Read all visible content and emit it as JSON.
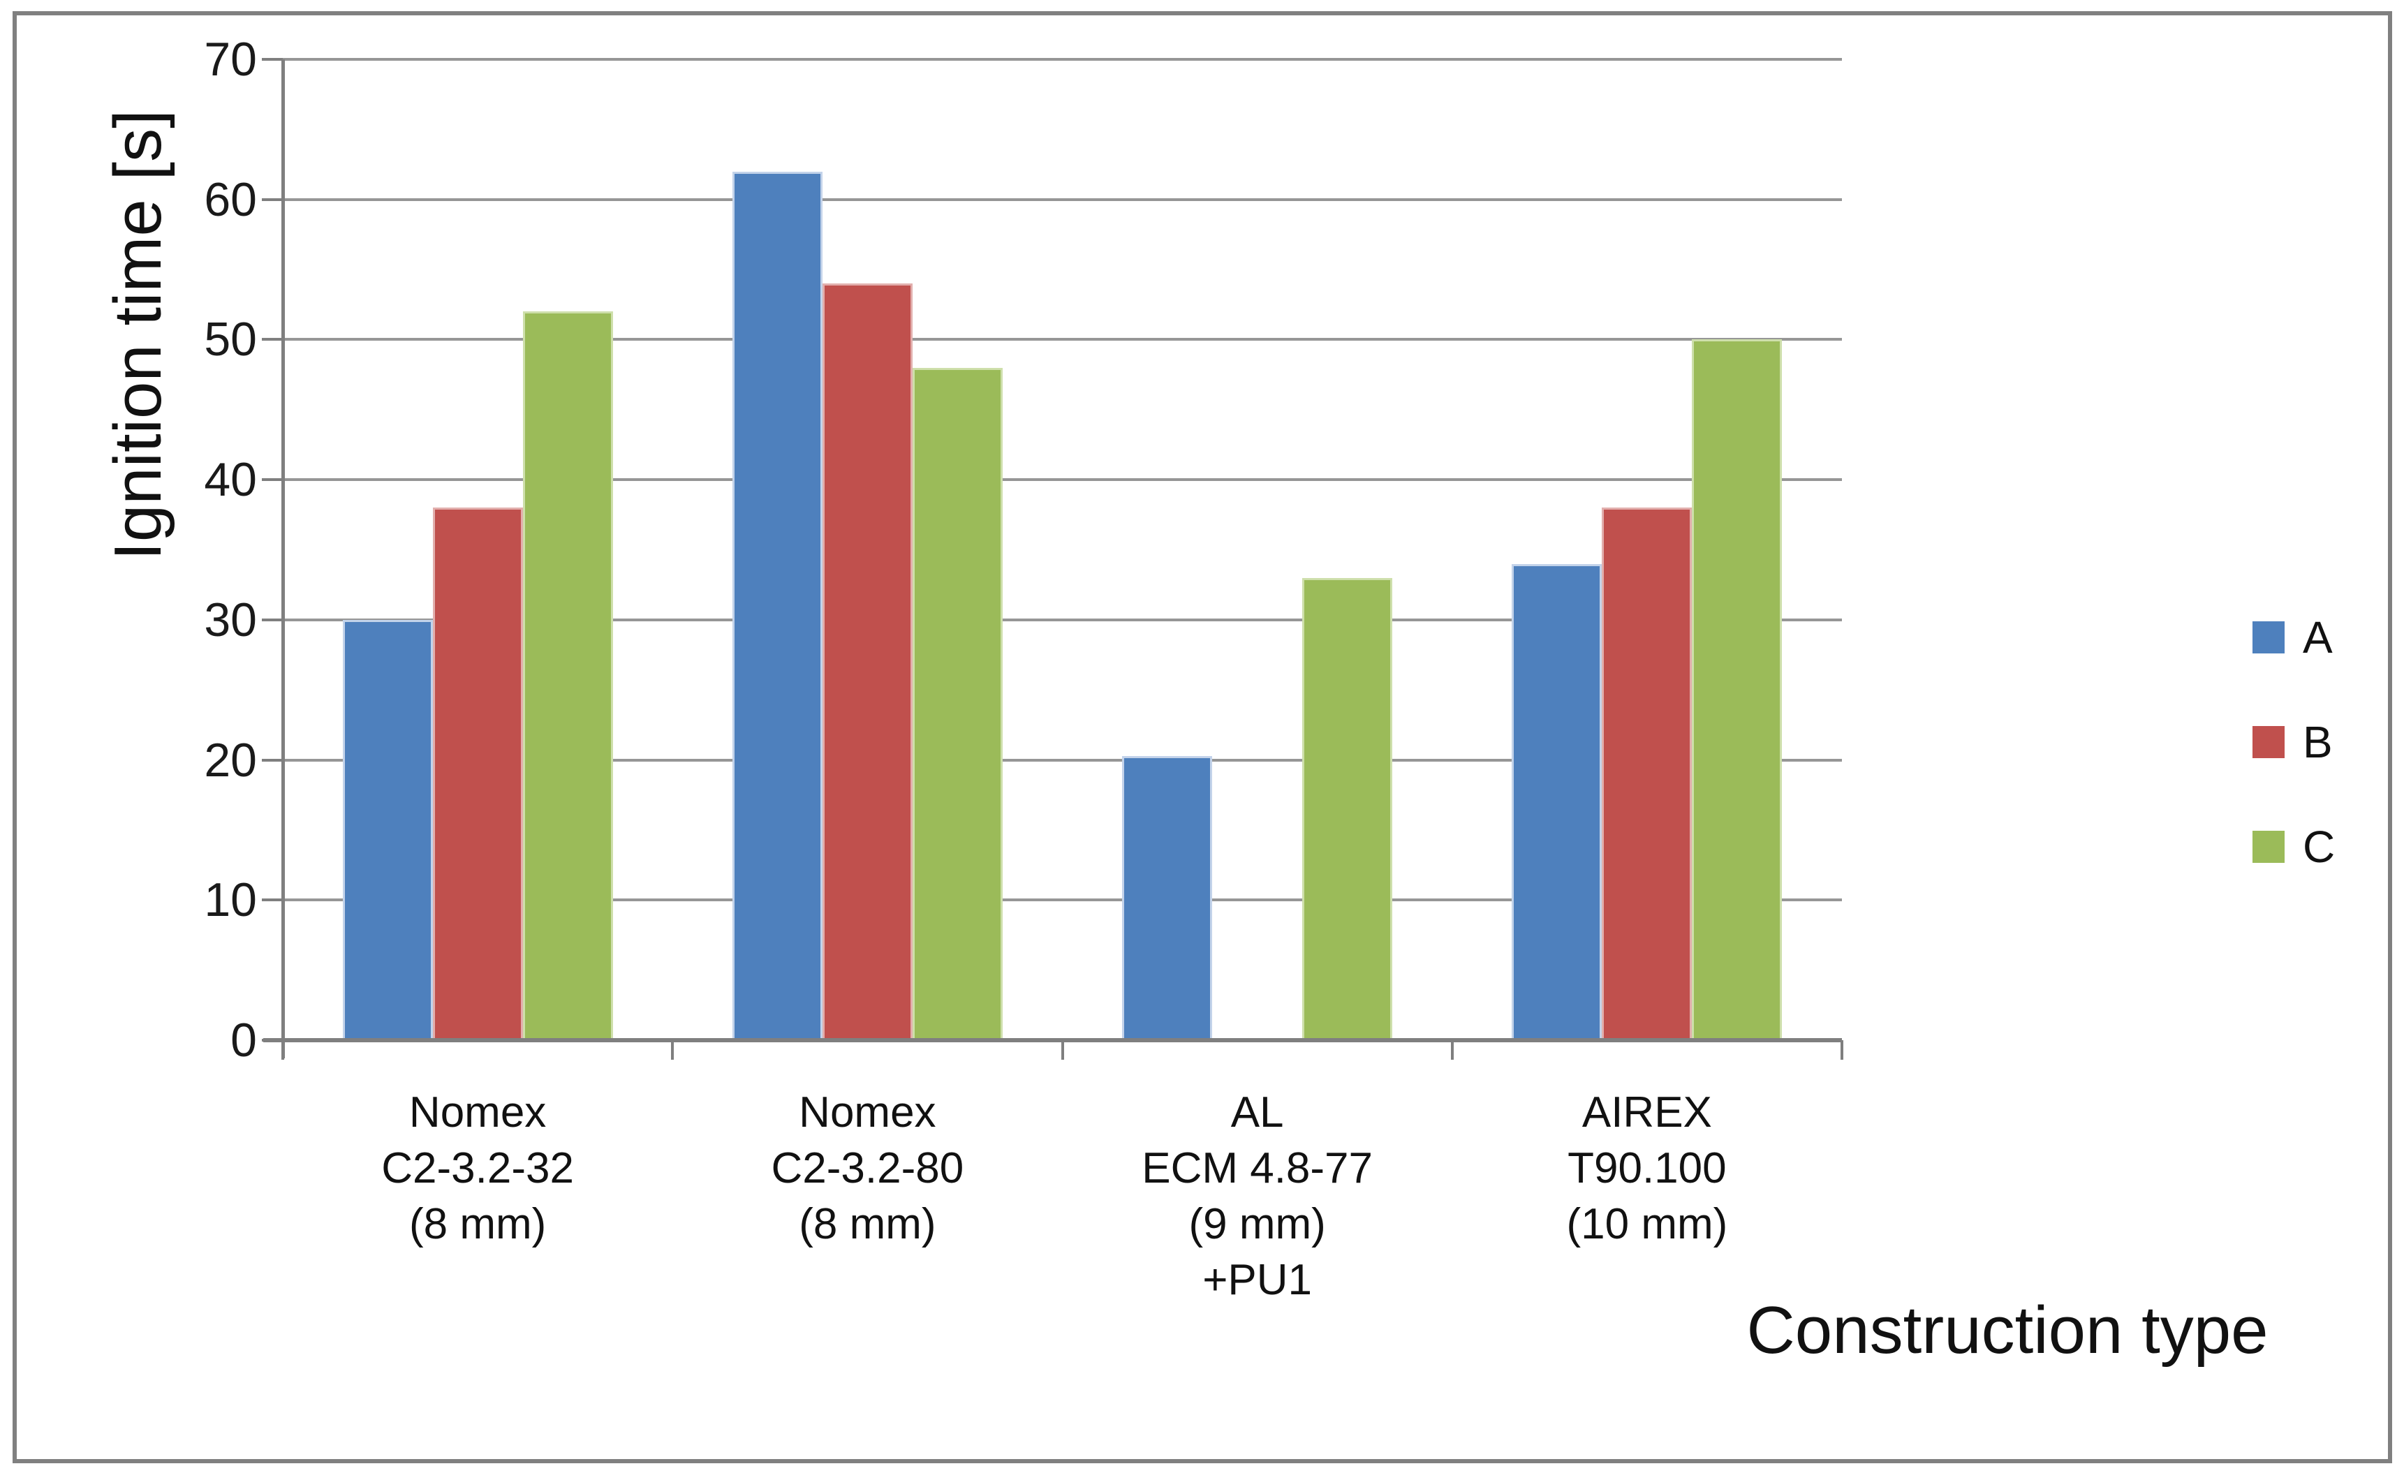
{
  "chart_data": {
    "type": "bar",
    "title": "",
    "ylabel": "Ignition time [s]",
    "xlabel": "Construction type",
    "ylim": [
      0,
      70
    ],
    "ytick_interval": 10,
    "yticks": [
      0,
      10,
      20,
      30,
      40,
      50,
      60,
      70
    ],
    "grid": true,
    "legend_position": "right-middle",
    "categories": [
      {
        "lines": [
          "Nomex",
          "C2-3.2-32",
          "(8 mm)"
        ]
      },
      {
        "lines": [
          "Nomex",
          "C2-3.2-80",
          "(8 mm)"
        ]
      },
      {
        "lines": [
          "AL",
          "ECM 4.8-77",
          "(9 mm)",
          "+PU1"
        ]
      },
      {
        "lines": [
          "AIREX",
          "T90.100",
          "(10 mm)"
        ]
      }
    ],
    "series": [
      {
        "name": "A",
        "color": "#4E80BD",
        "edge_color": "#C3D3EA",
        "values": [
          30,
          62,
          20.3,
          34
        ]
      },
      {
        "name": "B",
        "color": "#C0504D",
        "edge_color": "#E2AFAD",
        "values": [
          38,
          54,
          null,
          38
        ]
      },
      {
        "name": "C",
        "color": "#9BBB59",
        "edge_color": "#CEDFAB",
        "values": [
          52,
          48,
          33,
          50
        ]
      }
    ],
    "colors": {
      "gridline": "#969696",
      "axis": "#7F7F7F",
      "frame": "#808080",
      "text": "#1A1A1A",
      "background": "#FFFFFF"
    }
  }
}
